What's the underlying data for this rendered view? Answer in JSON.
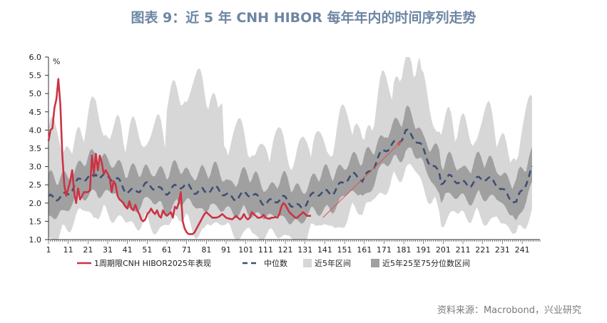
{
  "title": "图表 9：近 5 年 CNH HIBOR 每年年内的时间序列走势",
  "source": "资料来源：Macrobond，兴业研究",
  "chart_data": {
    "type": "line",
    "ylabel": "%",
    "ylim": [
      1.0,
      6.0
    ],
    "yticks": [
      "6.0",
      "5.5",
      "5.0",
      "4.5",
      "4.0",
      "3.5",
      "3.0",
      "2.5",
      "2.0",
      "1.5",
      "1.0"
    ],
    "xlim": [
      1,
      250
    ],
    "xticks": [
      "1",
      "11",
      "21",
      "31",
      "41",
      "51",
      "61",
      "71",
      "81",
      "91",
      "101",
      "111",
      "121",
      "131",
      "141",
      "151",
      "161",
      "171",
      "181",
      "191",
      "201",
      "211",
      "221",
      "231",
      "241"
    ],
    "colors": {
      "current": "#cc3344",
      "median": "#3e4f74",
      "band5": "#d7d7d7",
      "band25_75": "#a0a0a0",
      "arrow": "#e05050"
    },
    "series": [
      {
        "name": "1周期限CNH HIBOR2025年表现",
        "role": "current",
        "x": [
          1,
          2,
          3,
          4,
          5,
          6,
          7,
          8,
          9,
          10,
          11,
          12,
          13,
          14,
          15,
          16,
          17,
          18,
          19,
          20,
          21,
          22,
          23,
          24,
          25,
          26,
          27,
          28,
          29,
          30,
          31,
          32,
          33,
          34,
          35,
          36,
          37,
          38,
          39,
          40,
          41,
          42,
          43,
          44,
          45,
          46,
          47,
          48,
          49,
          50,
          51,
          52,
          53,
          54,
          55,
          56,
          57,
          58,
          59,
          60,
          61,
          62,
          63,
          64,
          65,
          66,
          67,
          68,
          69,
          70,
          71,
          72,
          73,
          74,
          75,
          76,
          77,
          78,
          79,
          80,
          81,
          82,
          83,
          84,
          85,
          86,
          87,
          88,
          89,
          90,
          91,
          92,
          93,
          94,
          95,
          96,
          97,
          98,
          99,
          100,
          101,
          102,
          103,
          104,
          105,
          106,
          107,
          108,
          109,
          110,
          111,
          112,
          113,
          114,
          115,
          116,
          117,
          118,
          119,
          120,
          121,
          122,
          123,
          124,
          125,
          126,
          127,
          128,
          129,
          130,
          131,
          132,
          133,
          134
        ],
        "values": [
          3.7,
          4.0,
          4.05,
          4.6,
          4.85,
          5.4,
          4.7,
          3.3,
          2.5,
          2.2,
          2.4,
          2.6,
          2.9,
          2.3,
          2.0,
          2.4,
          2.1,
          2.2,
          2.3,
          2.3,
          2.3,
          2.35,
          3.3,
          2.8,
          3.35,
          2.9,
          3.3,
          3.1,
          2.8,
          2.9,
          2.8,
          2.7,
          2.3,
          2.6,
          2.5,
          2.2,
          2.1,
          2.05,
          2.0,
          1.9,
          1.85,
          2.05,
          1.85,
          1.8,
          1.95,
          1.8,
          1.7,
          1.55,
          1.5,
          1.55,
          1.7,
          1.75,
          1.85,
          1.75,
          1.7,
          1.8,
          1.65,
          1.6,
          1.8,
          1.7,
          1.65,
          1.7,
          1.75,
          1.6,
          1.9,
          1.85,
          2.0,
          2.3,
          1.5,
          1.3,
          1.2,
          1.15,
          1.15,
          1.15,
          1.2,
          1.3,
          1.4,
          1.5,
          1.6,
          1.7,
          1.75,
          1.7,
          1.65,
          1.6,
          1.6,
          1.6,
          1.62,
          1.65,
          1.7,
          1.65,
          1.6,
          1.58,
          1.57,
          1.55,
          1.6,
          1.65,
          1.6,
          1.55,
          1.6,
          1.7,
          1.6,
          1.55,
          1.6,
          1.75,
          1.7,
          1.65,
          1.6,
          1.6,
          1.62,
          1.68,
          1.6,
          1.58,
          1.57,
          1.6,
          1.6,
          1.62,
          1.6,
          1.7,
          1.9,
          2.0,
          1.95,
          1.85,
          1.75,
          1.7,
          1.65,
          1.6,
          1.6,
          1.65,
          1.7,
          1.75,
          1.7,
          1.65,
          1.65,
          1.65
        ]
      },
      {
        "name": "中位数",
        "role": "median"
      },
      {
        "name": "近5年区间",
        "role": "band5"
      },
      {
        "name": "近5年25至75分位数区间",
        "role": "band25_75"
      }
    ]
  }
}
